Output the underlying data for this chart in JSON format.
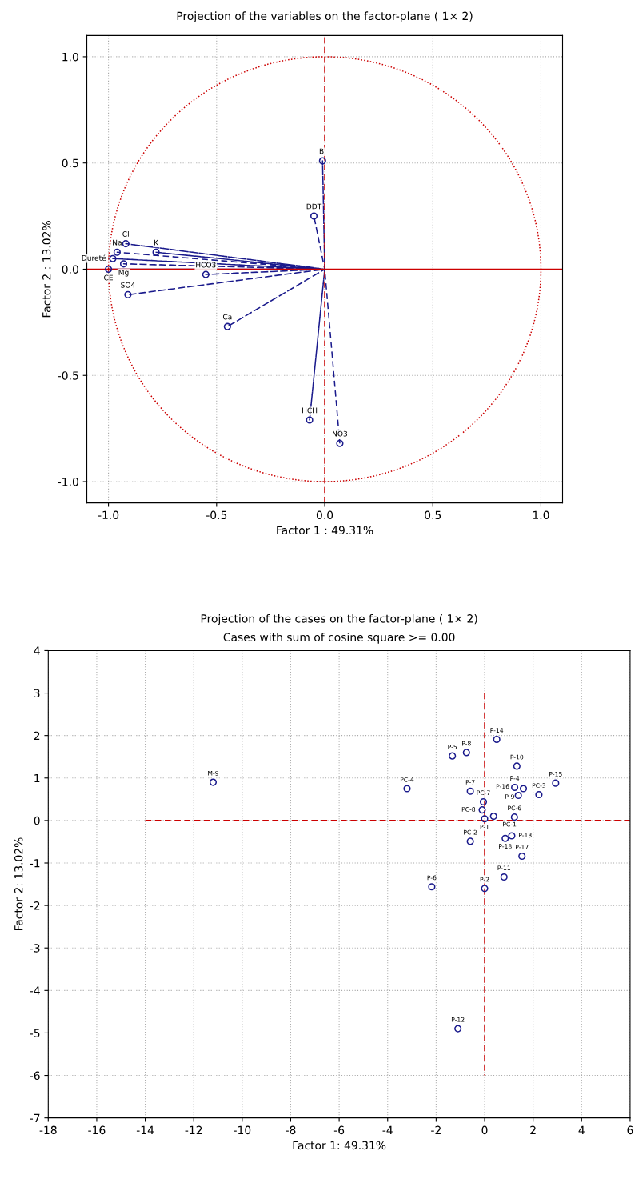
{
  "chart_data": [
    {
      "type": "scatter",
      "title": "Projection of the variables on the factor-plane ( 1× 2)",
      "xlabel": "Factor 1 : 49.31%",
      "ylabel": "Factor 2 : 13.02%",
      "xlim": [
        -1.1,
        1.1
      ],
      "ylim": [
        -1.1,
        1.1
      ],
      "xticks": [
        {
          "value": -1,
          "label": "-1.0"
        },
        -0.5,
        {
          "value": 0,
          "label": "0.0"
        },
        0.5,
        {
          "value": 1,
          "label": "1.0"
        }
      ],
      "yticks": [
        {
          "value": -1,
          "label": "-1.0"
        },
        -0.5,
        {
          "value": 0,
          "label": "0.0"
        },
        0.5,
        {
          "value": 1,
          "label": "1.0"
        }
      ],
      "grid": true,
      "marker": "circle",
      "series": [
        {
          "type": "line",
          "marker": "none",
          "line_style": "dashed",
          "color": "#1a1a8c",
          "x": [
            0,
            -0.96,
            0,
            -0.92,
            0,
            -0.78,
            0,
            -0.98,
            0,
            -0.93,
            0,
            -1.0,
            0,
            -0.55,
            0,
            -0.91,
            0,
            -0.45,
            0,
            -0.05,
            0,
            -0.01,
            0,
            -0.07,
            0,
            0.07
          ],
          "values": [
            0,
            0.08,
            0,
            0.12,
            0,
            0.08,
            0,
            0.05,
            0,
            0.025,
            0,
            0.0,
            0,
            -0.025,
            0,
            -0.12,
            0,
            -0.27,
            0,
            0.25,
            0,
            0.51,
            0,
            -0.71,
            0,
            -0.82
          ]
        },
        {
          "type": "scatter",
          "color": "#1a1a8c",
          "x": [
            -0.96,
            -0.92,
            -0.78,
            -0.98,
            -0.93,
            -1.0,
            -0.55,
            -0.91,
            -0.45,
            -0.05,
            -0.01,
            -0.07,
            0.07
          ],
          "values": [
            0.08,
            0.12,
            0.08,
            0.05,
            0.025,
            0.0,
            -0.025,
            -0.12,
            -0.27,
            0.25,
            0.51,
            -0.71,
            -0.82
          ]
        }
      ],
      "ref_lines": [
        {
          "axis": "x",
          "value": 0,
          "color": "#cc0000",
          "line_style": "dashed"
        },
        {
          "axis": "y",
          "value": 0,
          "color": "#cc0000",
          "line_style": "solid"
        }
      ],
      "annotations": [
        {
          "text": "Na",
          "x": -0.96,
          "y": 0.08
        },
        {
          "text": "Cl",
          "x": -0.92,
          "y": 0.12
        },
        {
          "text": "K",
          "x": -0.78,
          "y": 0.08
        },
        {
          "text": "Dureté",
          "x": -0.98,
          "y": 0.05
        },
        {
          "text": "Mg",
          "x": -0.93,
          "y": 0.025
        },
        {
          "text": "CE",
          "x": -1.0,
          "y": 0.0
        },
        {
          "text": "HCO3",
          "x": -0.55,
          "y": -0.025
        },
        {
          "text": "SO4",
          "x": -0.91,
          "y": -0.12
        },
        {
          "text": "Ca",
          "x": -0.45,
          "y": -0.27
        },
        {
          "text": "DDT",
          "x": -0.05,
          "y": 0.25
        },
        {
          "text": "Bi",
          "x": -0.01,
          "y": 0.51
        },
        {
          "text": "HCH",
          "x": -0.07,
          "y": -0.71
        },
        {
          "text": "NO3",
          "x": 0.07,
          "y": -0.82
        }
      ]
    },
    {
      "type": "scatter",
      "title": "Projection of the cases on the factor-plane ( 1× 2)",
      "subtitle": "Cases with sum of cosine square >= 0.00",
      "xlabel": "Factor 1: 49.31%",
      "ylabel": "Factor 2: 13.02%",
      "xlim": [
        -18,
        6
      ],
      "ylim": [
        -7,
        4
      ],
      "xticks": [
        -18,
        -16,
        -14,
        -12,
        -10,
        -8,
        -6,
        -4,
        -2,
        0,
        2,
        4,
        6
      ],
      "yticks": [
        -7,
        -6,
        -5,
        -4,
        -3,
        -2,
        -1,
        0,
        1,
        2,
        3,
        4
      ],
      "grid": true,
      "marker": "circle",
      "series": [
        {
          "type": "line",
          "marker": "none",
          "line_style": "dashed",
          "color": "#cc0000",
          "x": [
            -14,
            6
          ],
          "values": [
            0,
            0
          ]
        },
        {
          "type": "line",
          "marker": "none",
          "line_style": "dashed",
          "color": "#cc0000",
          "x": [
            0,
            0
          ],
          "values": [
            3,
            -6
          ]
        },
        {
          "type": "scatter",
          "color": "#1a1a8c",
          "x": [
            -11.2,
            -3.2,
            -1.33,
            -0.75,
            0.5,
            1.33,
            2.93,
            2.24,
            1.24,
            1.6,
            1.39,
            -0.59,
            -0.05,
            -0.1,
            1.23,
            0.0,
            0.37,
            -0.59,
            0.85,
            1.12,
            1.54,
            0.8,
            0.0,
            -2.18,
            -1.1
          ],
          "values": [
            0.9,
            0.75,
            1.52,
            1.6,
            1.91,
            1.28,
            0.88,
            0.61,
            0.78,
            0.75,
            0.59,
            0.69,
            0.44,
            0.25,
            0.08,
            0.04,
            0.1,
            -0.49,
            -0.42,
            -0.36,
            -0.84,
            -1.33,
            -1.6,
            -1.56,
            -4.9
          ]
        }
      ],
      "annotations": [
        {
          "text": "M-9",
          "x": -11.2,
          "y": 0.9
        },
        {
          "text": "PC-4",
          "x": -3.2,
          "y": 0.75
        },
        {
          "text": "P-5",
          "x": -1.33,
          "y": 1.52
        },
        {
          "text": "P-8",
          "x": -0.75,
          "y": 1.6
        },
        {
          "text": "P-14",
          "x": 0.5,
          "y": 1.91
        },
        {
          "text": "P-10",
          "x": 1.33,
          "y": 1.28
        },
        {
          "text": "P-15",
          "x": 2.93,
          "y": 0.88
        },
        {
          "text": "PC-3",
          "x": 2.24,
          "y": 0.61
        },
        {
          "text": "P-4",
          "x": 1.24,
          "y": 0.78
        },
        {
          "text": "P-9",
          "x": 1.6,
          "y": 0.75
        },
        {
          "text": "P-16",
          "x": 1.39,
          "y": 0.59
        },
        {
          "text": "P-7",
          "x": -0.59,
          "y": 0.69
        },
        {
          "text": "PC-7",
          "x": -0.05,
          "y": 0.44
        },
        {
          "text": "PC-8",
          "x": -0.1,
          "y": 0.25
        },
        {
          "text": "PC-6",
          "x": 1.23,
          "y": 0.08
        },
        {
          "text": "P-1",
          "x": 0.0,
          "y": 0.04
        },
        {
          "text": "PC-1",
          "x": 0.37,
          "y": 0.1
        },
        {
          "text": "PC-2",
          "x": -0.59,
          "y": -0.49
        },
        {
          "text": "P-18",
          "x": 0.85,
          "y": -0.42
        },
        {
          "text": "P-13",
          "x": 1.12,
          "y": -0.36
        },
        {
          "text": "P-17",
          "x": 1.54,
          "y": -0.84
        },
        {
          "text": "P-11",
          "x": 0.8,
          "y": -1.33
        },
        {
          "text": "P-2",
          "x": 0.0,
          "y": -1.6
        },
        {
          "text": "P-6",
          "x": -2.18,
          "y": -1.56
        },
        {
          "text": "P-12",
          "x": -1.1,
          "y": -4.9
        }
      ]
    }
  ]
}
